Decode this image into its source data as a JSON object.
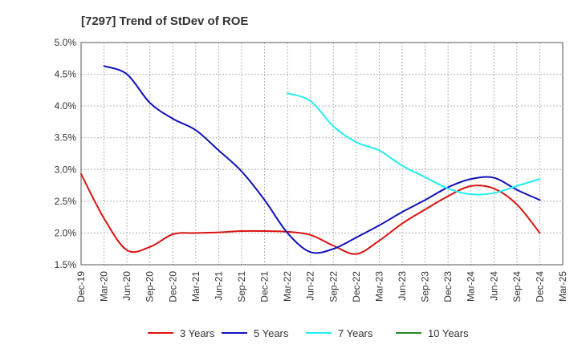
{
  "chart_data": {
    "type": "line",
    "title": "[7297]  Trend of StDev of ROE",
    "xlabel": "",
    "ylabel": "",
    "ylim": [
      1.5,
      5.0
    ],
    "y_ticks": [
      1.5,
      2.0,
      2.5,
      3.0,
      3.5,
      4.0,
      4.5,
      5.0
    ],
    "y_tick_labels": [
      "1.5%",
      "2.0%",
      "2.5%",
      "3.0%",
      "3.5%",
      "4.0%",
      "4.5%",
      "5.0%"
    ],
    "x": [
      "Dec-19",
      "Mar-20",
      "Jun-20",
      "Sep-20",
      "Dec-20",
      "Mar-21",
      "Jun-21",
      "Sep-21",
      "Dec-21",
      "Mar-22",
      "Jun-22",
      "Sep-22",
      "Dec-22",
      "Mar-23",
      "Jun-23",
      "Sep-23",
      "Dec-23",
      "Mar-24",
      "Jun-24",
      "Sep-24",
      "Dec-24",
      "Mar-25"
    ],
    "grid": true,
    "legend_position": "bottom",
    "series": [
      {
        "name": "3 Years",
        "color": "#dd1111",
        "points": [
          [
            "Dec-19",
            2.93
          ],
          [
            "Mar-20",
            2.23
          ],
          [
            "Jun-20",
            1.73
          ],
          [
            "Sep-20",
            1.78
          ],
          [
            "Dec-20",
            1.98
          ],
          [
            "Mar-21",
            2.0
          ],
          [
            "Jun-21",
            2.01
          ],
          [
            "Sep-21",
            2.03
          ],
          [
            "Dec-21",
            2.03
          ],
          [
            "Mar-22",
            2.02
          ],
          [
            "Jun-22",
            1.97
          ],
          [
            "Sep-22",
            1.8
          ],
          [
            "Dec-22",
            1.67
          ],
          [
            "Mar-23",
            1.88
          ],
          [
            "Jun-23",
            2.15
          ],
          [
            "Sep-23",
            2.37
          ],
          [
            "Dec-23",
            2.58
          ],
          [
            "Mar-24",
            2.74
          ],
          [
            "Jun-24",
            2.7
          ],
          [
            "Sep-24",
            2.45
          ],
          [
            "Dec-24",
            2.0
          ]
        ]
      },
      {
        "name": "5 Years",
        "color": "#1111bb",
        "points": [
          [
            "Mar-20",
            4.63
          ],
          [
            "Jun-20",
            4.5
          ],
          [
            "Sep-20",
            4.05
          ],
          [
            "Dec-20",
            3.8
          ],
          [
            "Mar-21",
            3.62
          ],
          [
            "Jun-21",
            3.3
          ],
          [
            "Sep-21",
            2.97
          ],
          [
            "Dec-21",
            2.52
          ],
          [
            "Mar-22",
            2.0
          ],
          [
            "Jun-22",
            1.7
          ],
          [
            "Sep-22",
            1.75
          ],
          [
            "Dec-22",
            1.93
          ],
          [
            "Mar-23",
            2.12
          ],
          [
            "Jun-23",
            2.33
          ],
          [
            "Sep-23",
            2.52
          ],
          [
            "Dec-23",
            2.72
          ],
          [
            "Mar-24",
            2.85
          ],
          [
            "Jun-24",
            2.87
          ],
          [
            "Sep-24",
            2.68
          ],
          [
            "Dec-24",
            2.52
          ]
        ]
      },
      {
        "name": "7 Years",
        "color": "#22eeee",
        "points": [
          [
            "Mar-22",
            4.2
          ],
          [
            "Jun-22",
            4.08
          ],
          [
            "Sep-22",
            3.68
          ],
          [
            "Dec-22",
            3.43
          ],
          [
            "Mar-23",
            3.3
          ],
          [
            "Jun-23",
            3.06
          ],
          [
            "Sep-23",
            2.88
          ],
          [
            "Dec-23",
            2.7
          ],
          [
            "Mar-24",
            2.61
          ],
          [
            "Jun-24",
            2.63
          ],
          [
            "Sep-24",
            2.74
          ],
          [
            "Dec-24",
            2.85
          ]
        ]
      },
      {
        "name": "10 Years",
        "color": "#228822",
        "points": []
      }
    ]
  }
}
